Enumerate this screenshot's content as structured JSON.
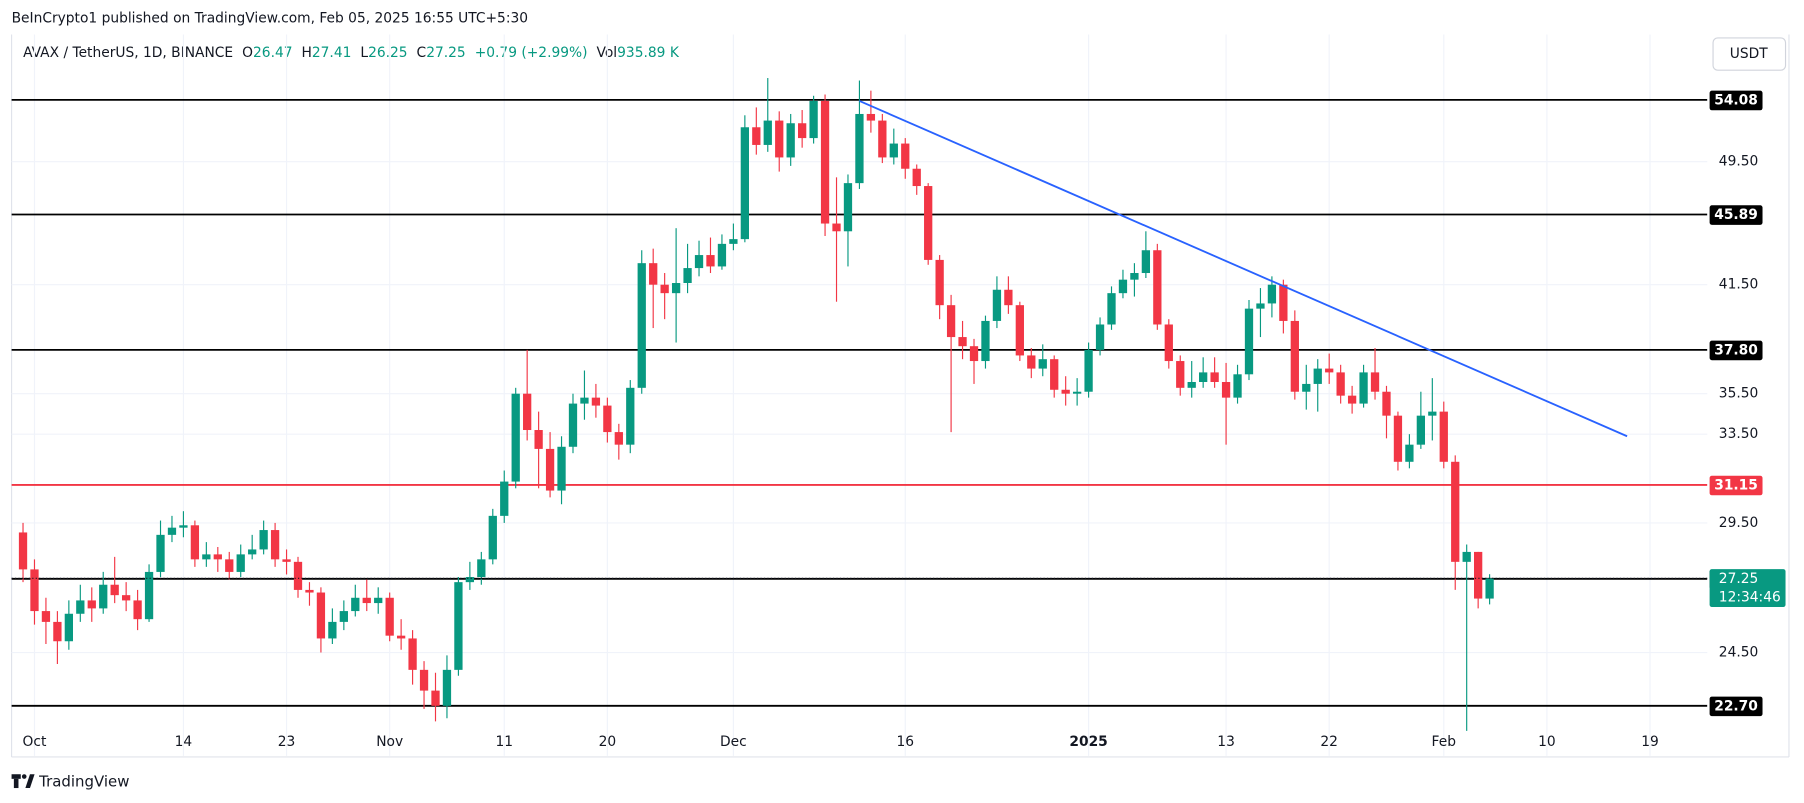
{
  "header": {
    "published": "BeInCrypto1 published on TradingView.com, Feb 05, 2025 16:55 UTC+5:30",
    "symbol": "AVAX / TetherUS, 1D, BINANCE",
    "ohlc": [
      {
        "key": "O",
        "value": "26.47"
      },
      {
        "key": "H",
        "value": "27.41"
      },
      {
        "key": "L",
        "value": "26.25"
      },
      {
        "key": "C",
        "value": "27.25"
      }
    ],
    "change": "+0.79 (+2.99%)",
    "volume": {
      "key": "Vol",
      "value": "935.89 K"
    }
  },
  "currency_button": "USDT",
  "footer": {
    "brand": "TradingView"
  },
  "chart_data": {
    "type": "candlestick",
    "log_scale": true,
    "grid": true,
    "up_color": "#089981",
    "down_color": "#f23645",
    "x": [
      "2024-09-30",
      "2024-10-01",
      "2024-10-02",
      "2024-10-03",
      "2024-10-04",
      "2024-10-05",
      "2024-10-06",
      "2024-10-07",
      "2024-10-08",
      "2024-10-09",
      "2024-10-10",
      "2024-10-11",
      "2024-10-12",
      "2024-10-13",
      "2024-10-14",
      "2024-10-15",
      "2024-10-16",
      "2024-10-17",
      "2024-10-18",
      "2024-10-19",
      "2024-10-20",
      "2024-10-21",
      "2024-10-22",
      "2024-10-23",
      "2024-10-24",
      "2024-10-25",
      "2024-10-26",
      "2024-10-27",
      "2024-10-28",
      "2024-10-29",
      "2024-10-30",
      "2024-10-31",
      "2024-11-01",
      "2024-11-02",
      "2024-11-03",
      "2024-11-04",
      "2024-11-05",
      "2024-11-06",
      "2024-11-07",
      "2024-11-08",
      "2024-11-09",
      "2024-11-10",
      "2024-11-11",
      "2024-11-12",
      "2024-11-13",
      "2024-11-14",
      "2024-11-15",
      "2024-11-16",
      "2024-11-17",
      "2024-11-18",
      "2024-11-19",
      "2024-11-20",
      "2024-11-21",
      "2024-11-22",
      "2024-11-23",
      "2024-11-24",
      "2024-11-25",
      "2024-11-26",
      "2024-11-27",
      "2024-11-28",
      "2024-11-29",
      "2024-11-30",
      "2024-12-01",
      "2024-12-02",
      "2024-12-03",
      "2024-12-04",
      "2024-12-05",
      "2024-12-06",
      "2024-12-07",
      "2024-12-08",
      "2024-12-09",
      "2024-12-10",
      "2024-12-11",
      "2024-12-12",
      "2024-12-13",
      "2024-12-14",
      "2024-12-15",
      "2024-12-16",
      "2024-12-17",
      "2024-12-18",
      "2024-12-19",
      "2024-12-20",
      "2024-12-21",
      "2024-12-22",
      "2024-12-23",
      "2024-12-24",
      "2024-12-25",
      "2024-12-26",
      "2024-12-27",
      "2024-12-28",
      "2024-12-29",
      "2024-12-30",
      "2024-12-31",
      "2025-01-01",
      "2025-01-02",
      "2025-01-03",
      "2025-01-04",
      "2025-01-05",
      "2025-01-06",
      "2025-01-07",
      "2025-01-08",
      "2025-01-09",
      "2025-01-10",
      "2025-01-11",
      "2025-01-12",
      "2025-01-13",
      "2025-01-14",
      "2025-01-15",
      "2025-01-16",
      "2025-01-17",
      "2025-01-18",
      "2025-01-19",
      "2025-01-20",
      "2025-01-21",
      "2025-01-22",
      "2025-01-23",
      "2025-01-24",
      "2025-01-25",
      "2025-01-26",
      "2025-01-27",
      "2025-01-28",
      "2025-01-29",
      "2025-01-30",
      "2025-01-31",
      "2025-02-01",
      "2025-02-02",
      "2025-02-03",
      "2025-02-04",
      "2025-02-05"
    ],
    "open": [
      29.1,
      27.6,
      26.0,
      25.6,
      24.9,
      25.9,
      26.4,
      26.1,
      27.0,
      26.6,
      26.4,
      25.7,
      27.5,
      29.0,
      29.3,
      29.4,
      28.0,
      28.2,
      28.0,
      27.5,
      28.2,
      28.4,
      29.2,
      28.0,
      27.9,
      26.8,
      26.7,
      25.0,
      25.6,
      26.0,
      26.5,
      26.3,
      26.5,
      25.1,
      25.0,
      23.9,
      23.2,
      22.7,
      23.9,
      27.1,
      27.3,
      28.0,
      29.8,
      31.3,
      35.5,
      33.7,
      32.8,
      30.9,
      32.9,
      35.0,
      35.3,
      34.9,
      33.6,
      33.0,
      35.8,
      42.8,
      41.5,
      41.0,
      41.6,
      42.5,
      43.3,
      42.6,
      44.0,
      44.3,
      52.0,
      50.7,
      52.5,
      49.8,
      52.3,
      51.2,
      54.0,
      45.3,
      44.8,
      48.0,
      53.0,
      52.5,
      49.8,
      50.8,
      49.0,
      47.8,
      43.0,
      40.3,
      38.5,
      38.0,
      37.2,
      39.4,
      41.2,
      40.3,
      37.5,
      36.8,
      37.3,
      35.7,
      35.5,
      35.6,
      37.8,
      39.2,
      41.0,
      41.8,
      42.2,
      43.6,
      39.2,
      37.2,
      35.8,
      36.1,
      36.6,
      36.1,
      35.3,
      36.5,
      40.1,
      40.4,
      41.5,
      39.4,
      35.6,
      36.0,
      36.8,
      36.6,
      35.4,
      35.0,
      36.6,
      35.6,
      34.4,
      32.2,
      33.0,
      34.4,
      34.6,
      32.2,
      27.9,
      28.3,
      26.47
    ],
    "high": [
      29.5,
      28.0,
      26.5,
      26.0,
      26.4,
      27.0,
      26.9,
      27.5,
      28.1,
      27.1,
      26.8,
      27.8,
      29.6,
      29.8,
      30.0,
      29.6,
      28.7,
      28.5,
      28.3,
      28.6,
      29.0,
      29.6,
      29.5,
      28.4,
      28.1,
      27.1,
      26.9,
      26.1,
      26.4,
      27.0,
      27.2,
      26.9,
      26.7,
      25.7,
      25.3,
      24.2,
      23.8,
      24.4,
      27.3,
      27.9,
      28.3,
      30.1,
      31.8,
      35.8,
      37.8,
      34.6,
      33.6,
      33.4,
      35.5,
      36.7,
      36.0,
      35.3,
      34.0,
      36.2,
      43.6,
      43.7,
      42.2,
      45.0,
      44.0,
      44.2,
      44.4,
      44.6,
      45.3,
      52.9,
      53.5,
      55.8,
      53.2,
      53.0,
      53.3,
      54.4,
      54.5,
      48.4,
      48.6,
      55.6,
      54.8,
      53.0,
      51.9,
      51.2,
      49.3,
      48.0,
      43.3,
      40.9,
      39.4,
      38.4,
      39.7,
      42.0,
      42.0,
      40.5,
      37.9,
      38.1,
      37.5,
      36.4,
      36.3,
      38.2,
      39.6,
      41.4,
      42.4,
      42.8,
      44.8,
      44.0,
      39.5,
      37.5,
      37.2,
      37.4,
      37.4,
      37.1,
      37.0,
      40.6,
      41.3,
      42.0,
      41.8,
      40.0,
      37.0,
      37.3,
      37.6,
      37.0,
      35.9,
      37.0,
      37.9,
      35.9,
      34.6,
      33.5,
      35.6,
      36.3,
      35.1,
      32.5,
      28.6,
      28.3,
      27.41
    ],
    "low": [
      27.1,
      25.5,
      24.8,
      24.1,
      24.6,
      25.6,
      25.6,
      25.9,
      26.3,
      26.0,
      25.3,
      25.6,
      27.3,
      28.7,
      28.9,
      27.7,
      27.7,
      27.5,
      27.2,
      27.3,
      28.0,
      28.2,
      27.7,
      27.4,
      26.5,
      26.2,
      24.5,
      24.8,
      25.3,
      25.8,
      26.0,
      25.9,
      24.9,
      24.6,
      23.4,
      22.6,
      22.2,
      22.3,
      23.7,
      26.8,
      27.0,
      27.8,
      29.5,
      31.0,
      33.2,
      31.0,
      30.6,
      30.3,
      32.6,
      34.2,
      34.3,
      33.1,
      32.3,
      32.6,
      35.5,
      39.0,
      39.5,
      38.2,
      41.0,
      42.0,
      42.2,
      42.4,
      43.6,
      44.1,
      50.0,
      50.2,
      48.8,
      49.2,
      50.5,
      50.8,
      44.5,
      40.5,
      42.6,
      47.6,
      51.6,
      49.4,
      49.3,
      48.3,
      47.2,
      42.7,
      39.5,
      33.6,
      37.3,
      36.0,
      36.8,
      39.0,
      39.8,
      37.2,
      36.3,
      36.4,
      35.3,
      34.9,
      34.9,
      35.3,
      37.5,
      38.9,
      40.7,
      40.8,
      41.9,
      38.9,
      36.8,
      35.4,
      35.3,
      35.8,
      35.8,
      33.0,
      35.0,
      36.2,
      38.5,
      39.6,
      38.7,
      35.2,
      34.7,
      34.6,
      36.0,
      35.0,
      34.5,
      34.8,
      35.2,
      33.3,
      31.8,
      31.9,
      32.8,
      33.2,
      31.9,
      26.8,
      21.9,
      26.1,
      26.25
    ],
    "close": [
      27.6,
      26.0,
      25.6,
      24.9,
      25.9,
      26.4,
      26.1,
      27.0,
      26.6,
      26.4,
      25.7,
      27.5,
      29.0,
      29.3,
      29.4,
      28.0,
      28.2,
      28.0,
      27.5,
      28.2,
      28.4,
      29.2,
      28.0,
      27.9,
      26.8,
      26.7,
      25.0,
      25.6,
      26.0,
      26.5,
      26.3,
      26.5,
      25.1,
      25.0,
      23.9,
      23.2,
      22.7,
      23.9,
      27.1,
      27.3,
      28.0,
      29.8,
      31.3,
      35.5,
      33.7,
      32.8,
      30.9,
      32.9,
      35.0,
      35.3,
      34.9,
      33.6,
      33.0,
      35.8,
      42.8,
      41.5,
      41.0,
      41.6,
      42.5,
      43.3,
      42.6,
      44.0,
      44.3,
      52.0,
      50.7,
      52.5,
      49.8,
      52.3,
      51.2,
      54.0,
      45.3,
      44.8,
      48.0,
      53.0,
      52.5,
      49.8,
      50.8,
      49.0,
      47.8,
      43.0,
      40.3,
      38.5,
      38.0,
      37.2,
      39.4,
      41.2,
      40.3,
      37.5,
      36.8,
      37.3,
      35.7,
      35.5,
      35.6,
      37.8,
      39.2,
      41.0,
      41.8,
      42.2,
      43.6,
      39.2,
      37.2,
      35.8,
      36.1,
      36.6,
      36.1,
      35.3,
      36.5,
      40.1,
      40.4,
      41.5,
      39.4,
      35.6,
      36.0,
      36.8,
      36.6,
      35.4,
      35.0,
      36.6,
      35.6,
      34.4,
      32.2,
      33.0,
      34.4,
      34.6,
      32.2,
      27.9,
      28.3,
      26.47,
      27.25
    ],
    "xlim": [
      "2024-09-29",
      "2025-02-24"
    ],
    "ylim": [
      21.2,
      62.4
    ],
    "xticks": [
      {
        "value": "2024-10-01",
        "label": "Oct"
      },
      {
        "value": "2024-10-14",
        "label": "14"
      },
      {
        "value": "2024-10-23",
        "label": "23"
      },
      {
        "value": "2024-11-01",
        "label": "Nov"
      },
      {
        "value": "2024-11-11",
        "label": "11"
      },
      {
        "value": "2024-11-20",
        "label": "20"
      },
      {
        "value": "2024-12-01",
        "label": "Dec"
      },
      {
        "value": "2024-12-16",
        "label": "16"
      },
      {
        "value": "2025-01-01",
        "label": "2025"
      },
      {
        "value": "2025-01-13",
        "label": "13"
      },
      {
        "value": "2025-01-22",
        "label": "22"
      },
      {
        "value": "2025-02-01",
        "label": "Feb"
      },
      {
        "value": "2025-02-10",
        "label": "10"
      },
      {
        "value": "2025-02-19",
        "label": "19"
      }
    ],
    "yticks": [
      {
        "value": 49.5,
        "label": "49.50"
      },
      {
        "value": 41.5,
        "label": "41.50"
      },
      {
        "value": 35.5,
        "label": "35.50"
      },
      {
        "value": 33.5,
        "label": "33.50"
      },
      {
        "value": 29.5,
        "label": "29.50"
      },
      {
        "value": 24.5,
        "label": "24.50"
      }
    ],
    "levels": [
      {
        "value": 54.08,
        "color": "#000000"
      },
      {
        "value": 45.89,
        "color": "#000000"
      },
      {
        "value": {
          "value": 37.8,
          "label": "37.80"
        },
        "color": "#000000"
      },
      {
        "value": 31.15,
        "color": "#f23645"
      },
      {
        "value": 27.23,
        "color": "#000000"
      },
      {
        "value": {
          "value": 22.7,
          "label": "22.70"
        },
        "color": "#000000"
      }
    ],
    "trendline": {
      "color": "#2962ff",
      "points": [
        {
          "x": "2024-12-12",
          "y": 54.0
        },
        {
          "x": "2025-02-17",
          "y": 33.4
        }
      ]
    },
    "last_price": 27.25,
    "countdown": "12:34:46"
  }
}
